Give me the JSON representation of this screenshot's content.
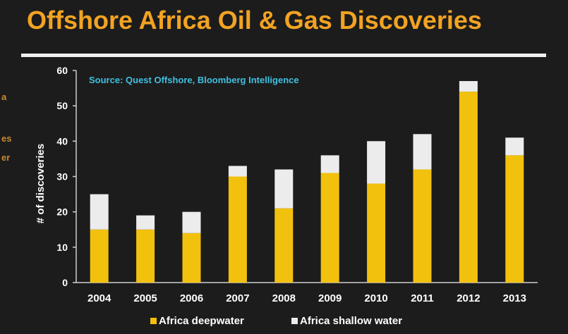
{
  "header": {
    "title": "Offshore Africa Oil & Gas Discoveries"
  },
  "side_fragments": [
    "a",
    "es",
    "er"
  ],
  "chart_data": {
    "type": "bar",
    "stacked": true,
    "source_note": "Source: Quest Offshore, Bloomberg Intelligence",
    "ylabel": "# of discoveries",
    "xlabel": "",
    "ylim": [
      0,
      60
    ],
    "yticks": [
      0,
      10,
      20,
      30,
      40,
      50,
      60
    ],
    "categories": [
      "2004",
      "2005",
      "2006",
      "2007",
      "2008",
      "2009",
      "2010",
      "2011",
      "2012",
      "2013"
    ],
    "series": [
      {
        "name": "Africa deepwater",
        "color": "#f2c10d",
        "values": [
          15,
          15,
          14,
          30,
          21,
          31,
          28,
          32,
          54,
          36
        ]
      },
      {
        "name": "Africa shallow water",
        "color": "#ececec",
        "values": [
          10,
          4,
          6,
          3,
          11,
          5,
          12,
          10,
          3,
          5
        ]
      }
    ],
    "grid": false,
    "legend_position": "bottom"
  }
}
